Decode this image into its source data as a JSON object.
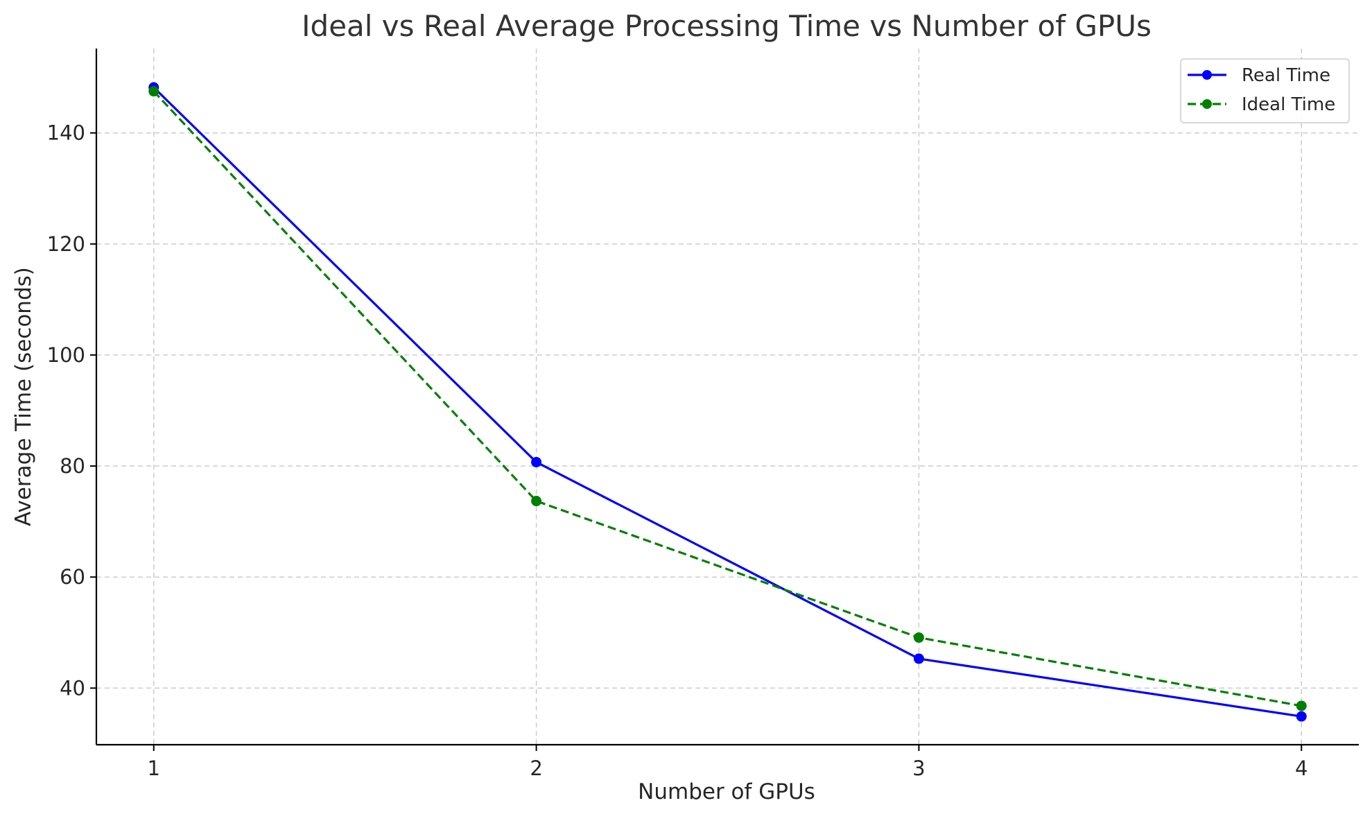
{
  "chart_data": {
    "type": "line",
    "title": "Ideal vs Real Average Processing Time vs Number of GPUs",
    "xlabel": "Number of GPUs",
    "ylabel": "Average Time (seconds)",
    "x": [
      1,
      2,
      3,
      4
    ],
    "x_tick_labels": [
      "1",
      "2",
      "3",
      "4"
    ],
    "xlim": [
      0.85,
      4.15
    ],
    "ylim": [
      29.8,
      155.2
    ],
    "y_ticks": [
      40,
      60,
      80,
      100,
      120,
      140
    ],
    "y_tick_labels": [
      "40",
      "60",
      "80",
      "100",
      "120",
      "140"
    ],
    "grid": true,
    "legend_position": "top-right",
    "series": [
      {
        "name": "Real Time",
        "values": [
          148.2,
          80.7,
          45.3,
          34.9
        ],
        "color": "#0000ff",
        "line_style": "solid",
        "marker": "circle"
      },
      {
        "name": "Ideal Time",
        "values": [
          147.5,
          73.7,
          49.1,
          36.8
        ],
        "color": "#008000",
        "line_style": "dashed",
        "marker": "circle"
      }
    ]
  }
}
